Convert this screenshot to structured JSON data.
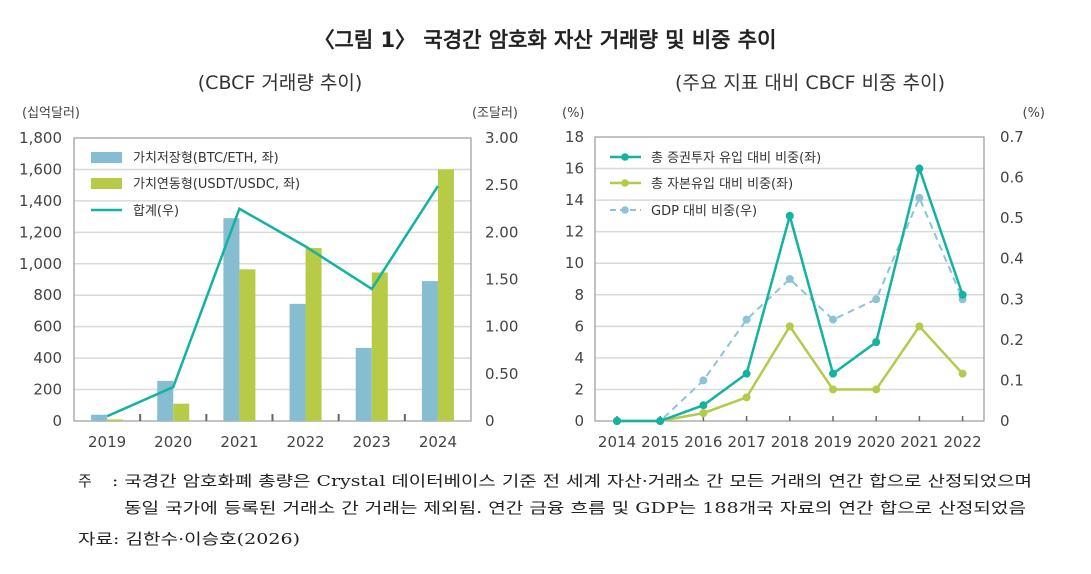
{
  "title": "〈그림 1〉 국경간 암호화 자산 거래량 및 비중 추이",
  "colors": {
    "blue_bar": "#86bdd1",
    "green_bar": "#b8cb47",
    "teal_line": "#12b3a0",
    "lime_line": "#b3cb4a",
    "dashed_line": "#8ec3d6",
    "grid": "#d9d9d9",
    "frame": "#999999"
  },
  "chart_data": [
    {
      "type": "bar",
      "title": "(CBCF 거래량 추이)",
      "ylabel": "(십억달러)",
      "y2label": "(조달러)",
      "categories": [
        "2019",
        "2020",
        "2021",
        "2022",
        "2023",
        "2024"
      ],
      "ylim": [
        0,
        1800
      ],
      "yticks": [
        "0",
        "200",
        "400",
        "600",
        "800",
        "1,000",
        "1,200",
        "1,400",
        "1,600",
        "1,800"
      ],
      "y2lim": [
        0,
        3
      ],
      "y2ticks": [
        "0",
        "0.50",
        "1.00",
        "1.50",
        "2.00",
        "2.50",
        "3.00"
      ],
      "grid": true,
      "legend_position": "top-left",
      "series": [
        {
          "name": "가치저장형(BTC/ETH, 좌)",
          "kind": "bar",
          "axis": "left",
          "values": [
            40,
            255,
            1290,
            745,
            465,
            890
          ]
        },
        {
          "name": "가치연동형(USDT/USDC, 좌)",
          "kind": "bar",
          "axis": "left",
          "values": [
            10,
            110,
            965,
            1100,
            945,
            1600
          ]
        },
        {
          "name": "합계(우)",
          "kind": "line",
          "axis": "right",
          "values": [
            0.05,
            0.36,
            2.25,
            1.85,
            1.4,
            2.49
          ]
        }
      ]
    },
    {
      "type": "line",
      "title": "(주요 지표 대비 CBCF 비중 추이)",
      "ylabel": "(%)",
      "y2label": "(%)",
      "categories": [
        "2014",
        "2015",
        "2016",
        "2017",
        "2018",
        "2019",
        "2020",
        "2021",
        "2022"
      ],
      "ylim": [
        0,
        18
      ],
      "yticks": [
        "0",
        "2",
        "4",
        "6",
        "8",
        "10",
        "12",
        "14",
        "16",
        "18"
      ],
      "y2lim": [
        0,
        0.7
      ],
      "y2ticks": [
        "0",
        "0.1",
        "0.2",
        "0.3",
        "0.4",
        "0.5",
        "0.6",
        "0.7"
      ],
      "grid": true,
      "legend_position": "top-left",
      "series": [
        {
          "name": "총 증권투자 유입 대비 비중(좌)",
          "axis": "left",
          "style": "solid",
          "values": [
            0,
            0,
            1,
            3,
            13,
            3,
            5,
            16,
            8
          ]
        },
        {
          "name": "총 자본유입 대비 비중(좌)",
          "axis": "left",
          "style": "solid",
          "values": [
            0,
            0,
            0.5,
            1.5,
            6,
            2,
            2,
            6,
            3
          ]
        },
        {
          "name": "GDP 대비 비중(우)",
          "axis": "right",
          "style": "dashed",
          "values": [
            0,
            0,
            0.1,
            0.25,
            0.35,
            0.25,
            0.3,
            0.55,
            0.3
          ]
        }
      ]
    }
  ],
  "notes": {
    "label": "주",
    "line1": ": 국경간 암호화폐 총량은 Crystal 데이터베이스 기준 전 세계 자산·거래소 간 모든 거래의 연간 합으로 산정되었으며",
    "line2": "동일 국가에 등록된 거래소 간 거래는 제외됨. 연간 금융 흐름 및 GDP는 188개국 자료의 연간 합으로 산정되었음",
    "source": "자료: 김한수·이승호(2026)"
  }
}
